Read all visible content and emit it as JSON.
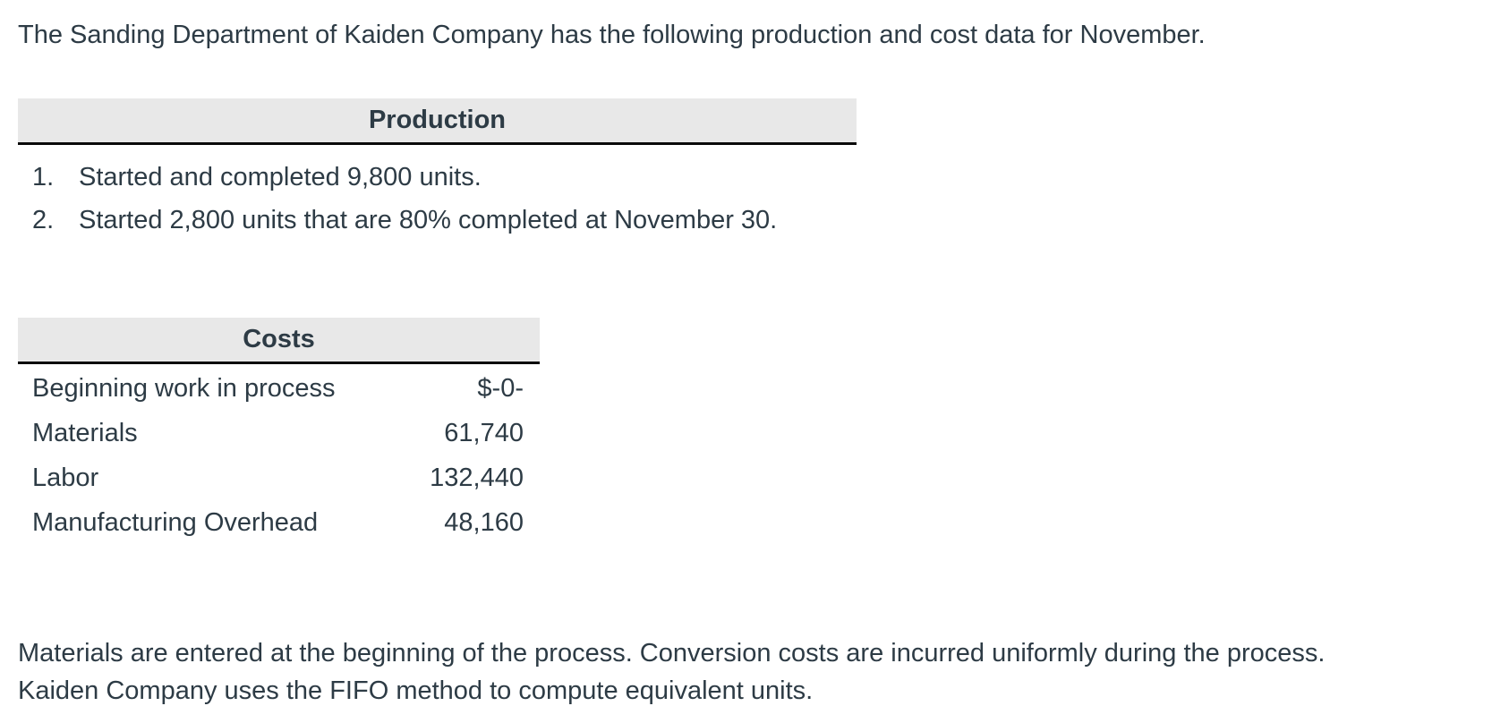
{
  "intro": "The Sanding Department of Kaiden Company has the following production and cost data for November.",
  "production": {
    "title": "Production",
    "items": [
      {
        "number": "1.",
        "text": "Started and completed 9,800 units."
      },
      {
        "number": "2.",
        "text": "Started 2,800 units that are 80% completed at November 30."
      }
    ]
  },
  "costs": {
    "title": "Costs",
    "rows": [
      {
        "label": "Beginning work in process",
        "value": "$-0-"
      },
      {
        "label": "Materials",
        "value": "61,740"
      },
      {
        "label": "Labor",
        "value": "132,440"
      },
      {
        "label": "Manufacturing Overhead",
        "value": "48,160"
      }
    ]
  },
  "footer": {
    "lines": [
      "Materials are entered at the beginning of the process. Conversion costs are incurred uniformly during the process.",
      "Kaiden Company uses the FIFO method to compute equivalent units."
    ]
  },
  "colors": {
    "text": "#2d3b45",
    "header_background": "#e8e8e8",
    "header_border": "#0a0a0a",
    "page_background": "#ffffff"
  }
}
